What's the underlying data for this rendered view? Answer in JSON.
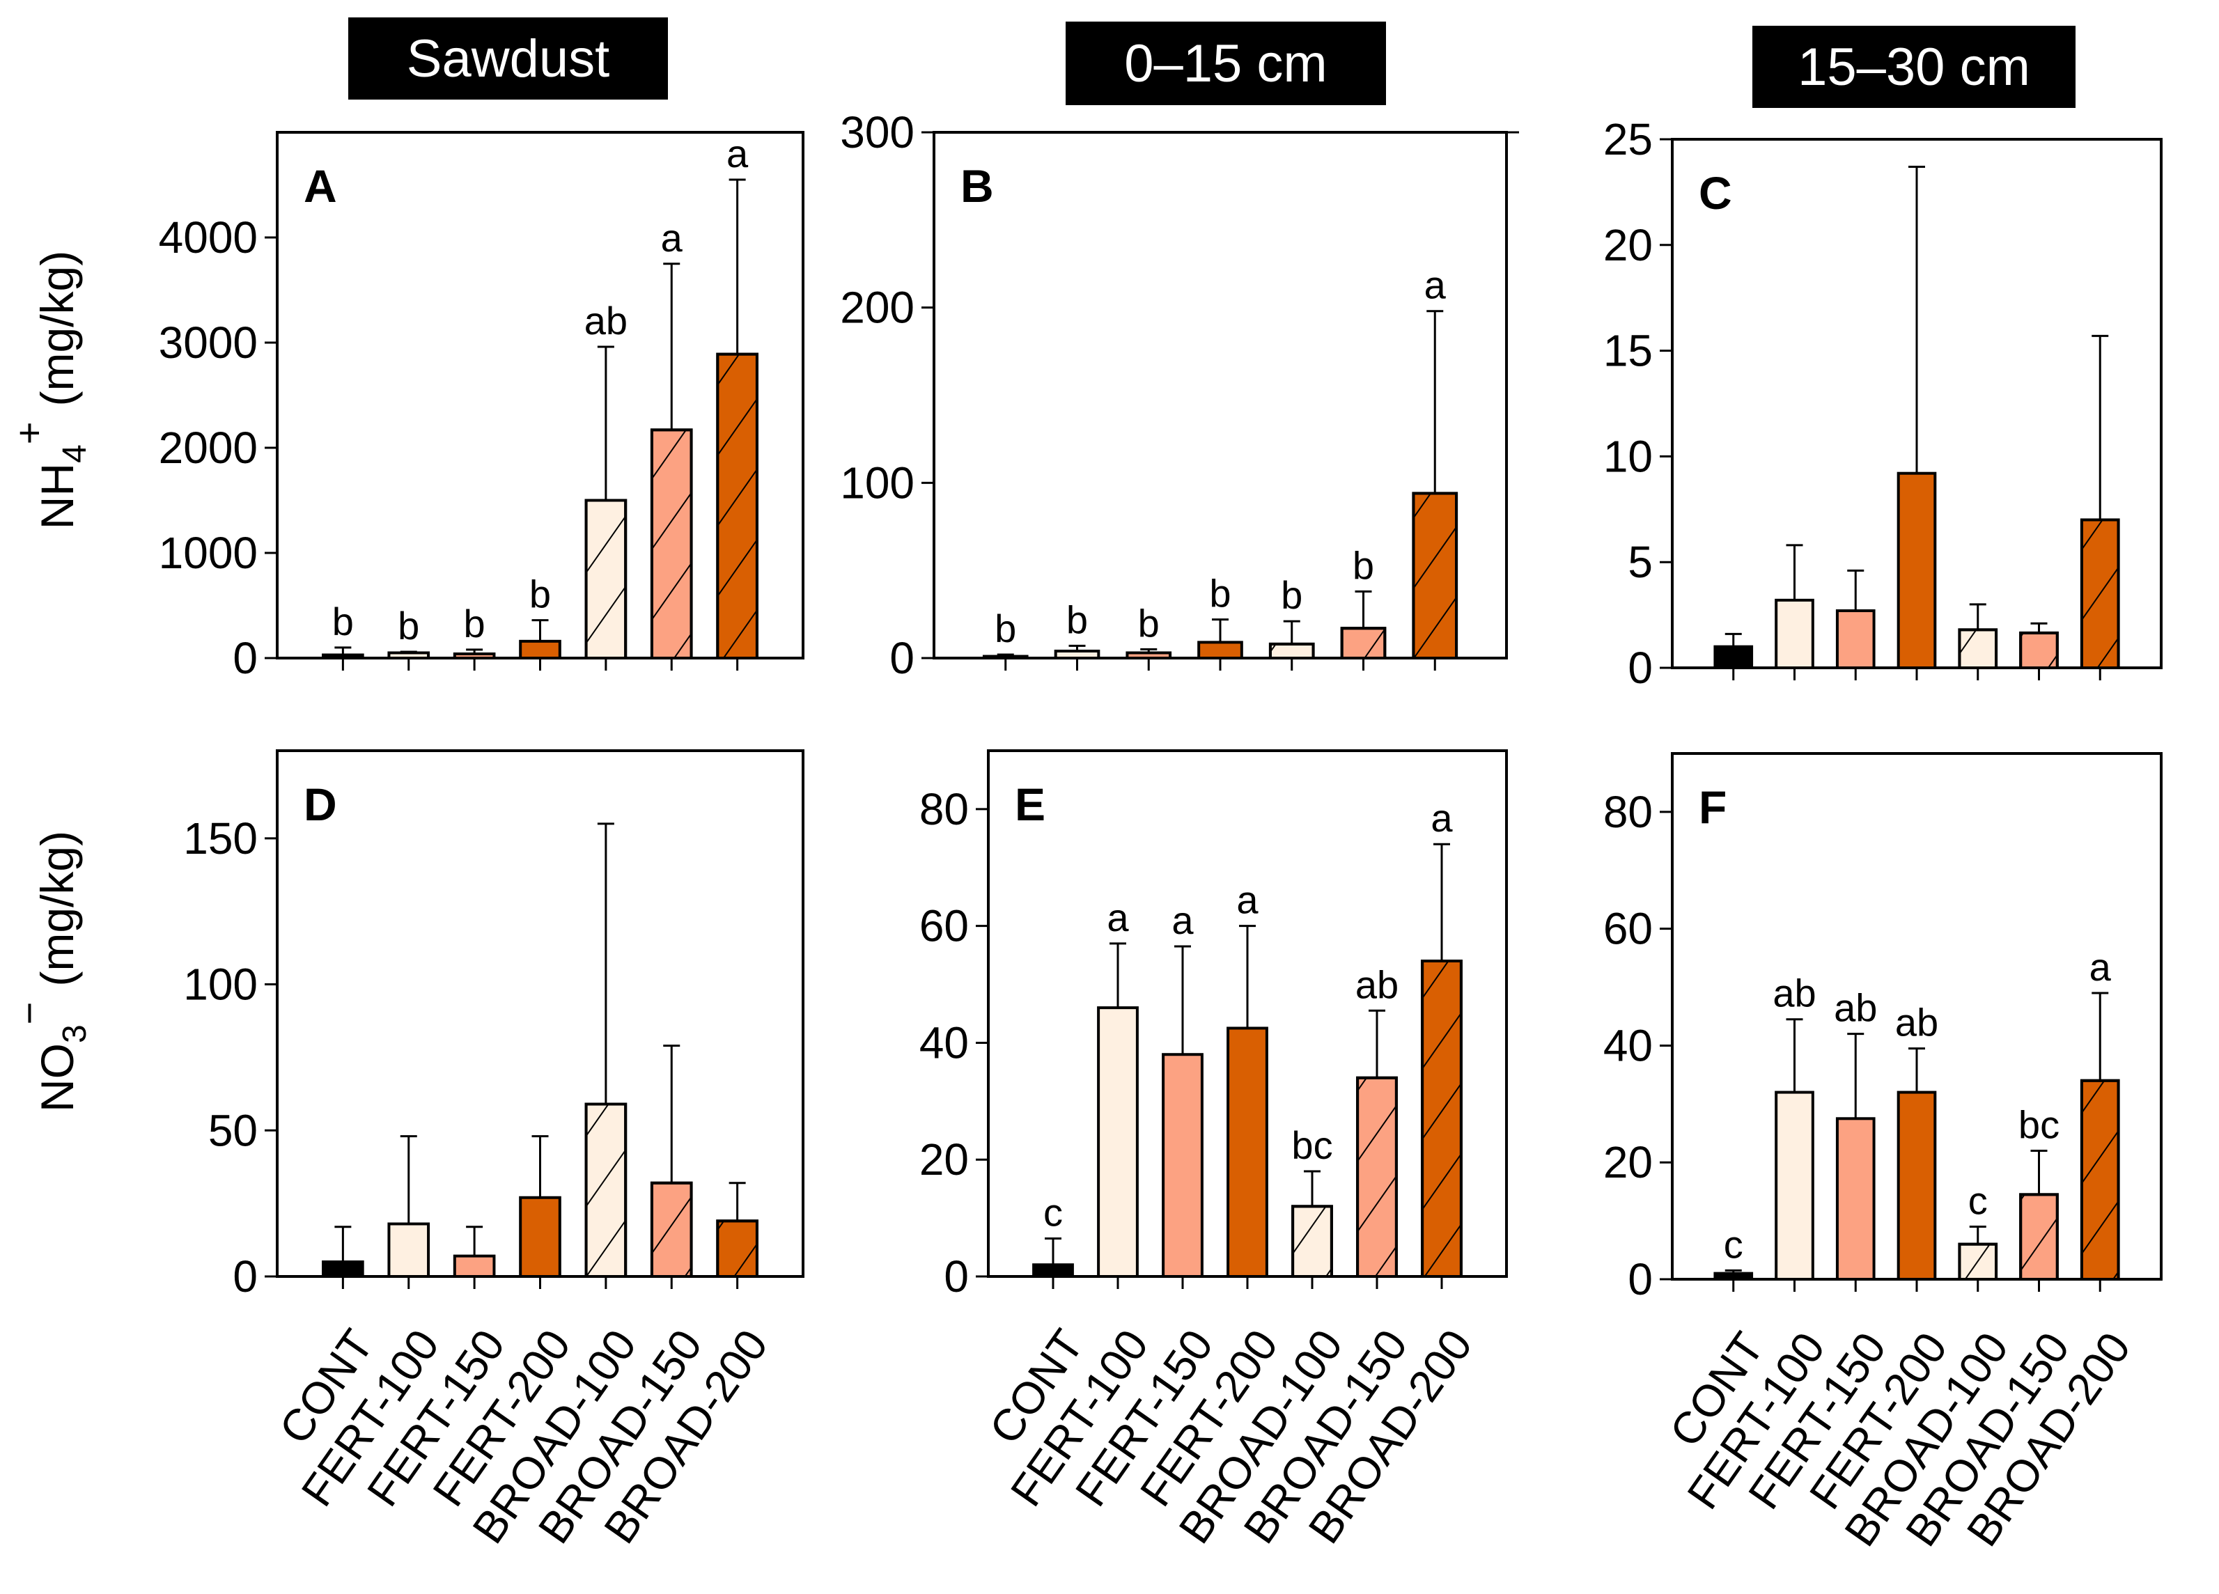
{
  "column_titles": [
    "Sawdust",
    "0–15 cm",
    "15–30 cm"
  ],
  "ylabels": {
    "top": {
      "main": "NH",
      "sub": "4",
      "sup": "+",
      "unit": "(mg/kg)"
    },
    "bottom": {
      "main": "NO",
      "sub": "3",
      "sup": "−",
      "unit": "(mg/kg)"
    }
  },
  "colors": {
    "CONT": "#000000",
    "c100": "#FEF0E1",
    "c150": "#FCA282",
    "c200": "#D95F02"
  },
  "chart_data": [
    {
      "type": "bar",
      "panel": "A",
      "title": "Sawdust",
      "ylabel": "NH4+ (mg/kg)",
      "ylim": [
        0,
        5000
      ],
      "yticks": [
        0,
        1000,
        2000,
        3000,
        4000
      ],
      "categories": [
        "CONT",
        "FERT-100",
        "FERT-150",
        "FERT-200",
        "BROAD-100",
        "BROAD-150",
        "BROAD-200"
      ],
      "values": [
        30,
        50,
        40,
        160,
        1500,
        2170,
        2890
      ],
      "error_top": [
        100,
        60,
        80,
        360,
        2960,
        3750,
        4550
      ],
      "letters": [
        "b",
        "b",
        "b",
        "b",
        "ab",
        "a",
        "a"
      ]
    },
    {
      "type": "bar",
      "panel": "B",
      "title": "0–15 cm",
      "ylabel": "NH4+ (mg/kg)",
      "ylim": [
        0,
        300
      ],
      "yticks": [
        0,
        100,
        200,
        300
      ],
      "categories": [
        "CONT",
        "FERT-100",
        "FERT-150",
        "FERT-200",
        "BROAD-100",
        "BROAD-150",
        "BROAD-200"
      ],
      "values": [
        1,
        4,
        3,
        9,
        8,
        17,
        94
      ],
      "error_top": [
        2,
        7,
        5,
        22,
        21,
        38,
        198
      ],
      "letters": [
        "b",
        "b",
        "b",
        "b",
        "b",
        "b",
        "a"
      ]
    },
    {
      "type": "bar",
      "panel": "C",
      "title": "15–30 cm",
      "ylabel": "NH4+ (mg/kg)",
      "ylim": [
        0,
        25
      ],
      "yticks": [
        0,
        5,
        10,
        15,
        20,
        25
      ],
      "categories": [
        "CONT",
        "FERT-100",
        "FERT-150",
        "FERT-200",
        "BROAD-100",
        "BROAD-150",
        "BROAD-200"
      ],
      "values": [
        1.0,
        3.2,
        2.7,
        9.2,
        1.8,
        1.65,
        7.0
      ],
      "error_top": [
        1.6,
        5.8,
        4.6,
        23.7,
        3.0,
        2.1,
        15.7
      ],
      "letters": []
    },
    {
      "type": "bar",
      "panel": "D",
      "title": "Sawdust",
      "ylabel": "NO3− (mg/kg)",
      "ylim": [
        0,
        180
      ],
      "yticks": [
        0,
        50,
        100,
        150
      ],
      "categories": [
        "CONT",
        "FERT-100",
        "FERT-150",
        "FERT-200",
        "BROAD-100",
        "BROAD-150",
        "BROAD-200"
      ],
      "values": [
        5,
        18,
        7,
        27,
        59,
        32,
        19
      ],
      "error_top": [
        17,
        48,
        17,
        48,
        155,
        79,
        32
      ],
      "letters": []
    },
    {
      "type": "bar",
      "panel": "E",
      "title": "0–15 cm",
      "ylabel": "NO3− (mg/kg)",
      "ylim": [
        0,
        90
      ],
      "yticks": [
        0,
        20,
        40,
        60,
        80
      ],
      "categories": [
        "CONT",
        "FERT-100",
        "FERT-150",
        "FERT-200",
        "BROAD-100",
        "BROAD-150",
        "BROAD-200"
      ],
      "values": [
        2,
        46,
        38,
        42.5,
        12,
        34,
        54
      ],
      "error_top": [
        6.5,
        57,
        56.5,
        60,
        18,
        45.5,
        74
      ],
      "letters": [
        "c",
        "a",
        "a",
        "a",
        "bc",
        "ab",
        "a"
      ]
    },
    {
      "type": "bar",
      "panel": "F",
      "title": "15–30 cm",
      "ylabel": "NO3− (mg/kg)",
      "ylim": [
        0,
        90
      ],
      "yticks": [
        0,
        20,
        40,
        60,
        80
      ],
      "categories": [
        "CONT",
        "FERT-100",
        "FERT-150",
        "FERT-200",
        "BROAD-100",
        "BROAD-150",
        "BROAD-200"
      ],
      "values": [
        1,
        32,
        27.5,
        32,
        6,
        14.5,
        34
      ],
      "error_top": [
        1.5,
        44.5,
        42,
        39.5,
        9,
        22,
        49
      ],
      "letters": [
        "c",
        "ab",
        "ab",
        "ab",
        "c",
        "bc",
        "a"
      ]
    }
  ]
}
